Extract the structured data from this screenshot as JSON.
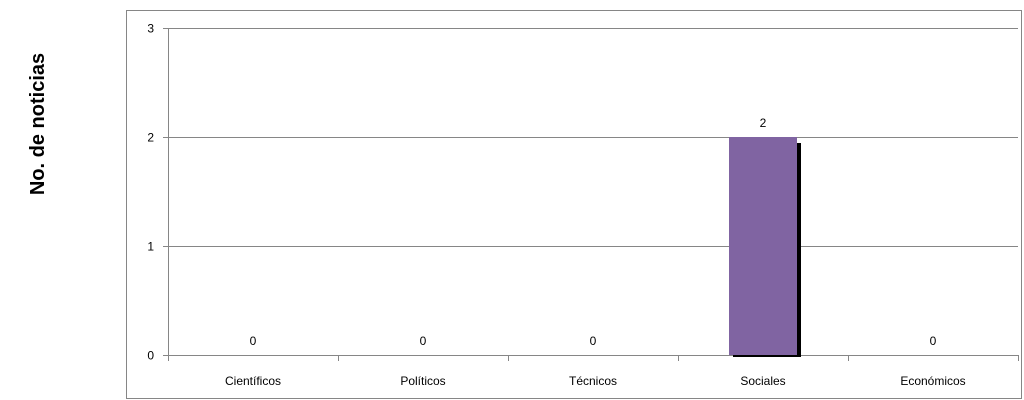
{
  "chart_data": {
    "type": "bar",
    "title": "",
    "xlabel": "",
    "ylabel": "No. de noticias",
    "categories": [
      "Científicos",
      "Políticos",
      "Técnicos",
      "Sociales",
      "Económicos"
    ],
    "values": [
      0,
      0,
      0,
      2,
      0
    ],
    "data_labels": [
      "0",
      "0",
      "0",
      "2",
      "0"
    ],
    "ylim": [
      0,
      3
    ],
    "yticks": [
      "0",
      "1",
      "2",
      "3"
    ],
    "grid": true,
    "legend": "none",
    "bar_color": "#8064a2",
    "bar_shadow_color": "#000000",
    "gridline_color": "#868686"
  }
}
